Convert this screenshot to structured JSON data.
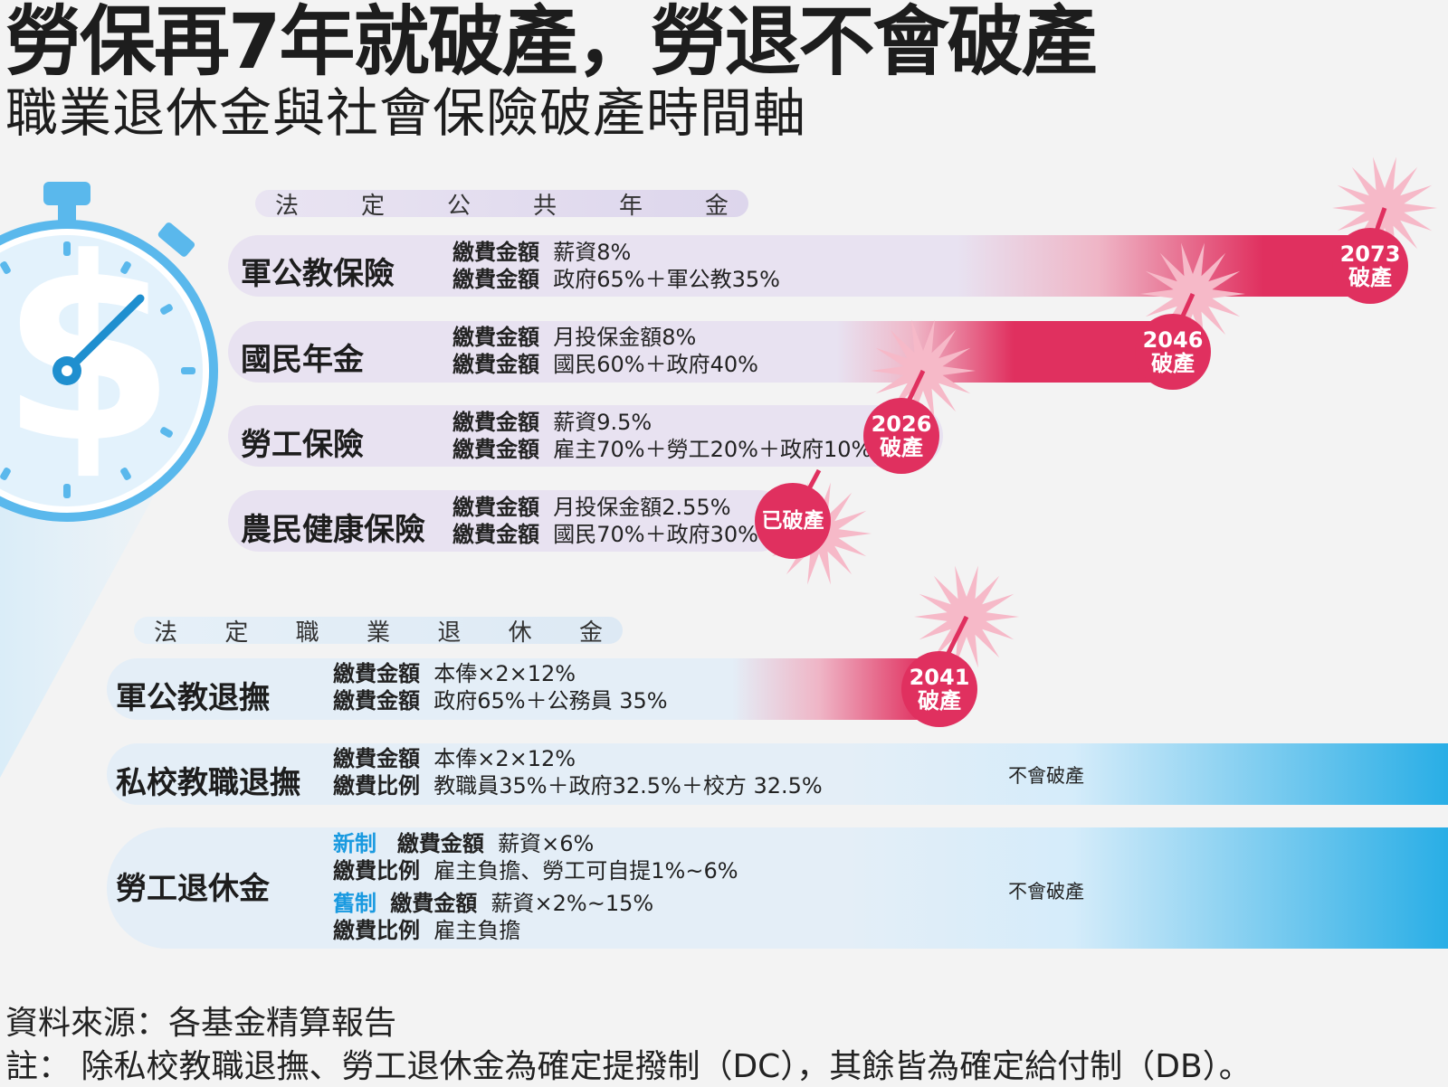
{
  "title": "勞保再7年就破產，勞退不會破產",
  "subtitle": "職業退休金與社會保險破產時間軸",
  "section1": {
    "header": [
      "法",
      "定",
      "公",
      "共",
      "年",
      "金"
    ]
  },
  "section2": {
    "header": [
      "法",
      "定",
      "職",
      "業",
      "退",
      "休",
      "金"
    ]
  },
  "public_rows": [
    {
      "name": "軍公教保險",
      "lines": [
        [
          "繳費金額",
          "薪資8%"
        ],
        [
          "繳費金額",
          "政府65%＋軍公教35%"
        ]
      ],
      "badge": [
        "2073",
        "破產"
      ]
    },
    {
      "name": "國民年金",
      "lines": [
        [
          "繳費金額",
          "月投保金額8%"
        ],
        [
          "繳費金額",
          "國民60%＋政府40%"
        ]
      ],
      "badge": [
        "2046",
        "破產"
      ]
    },
    {
      "name": "勞工保險",
      "lines": [
        [
          "繳費金額",
          "薪資9.5%"
        ],
        [
          "繳費金額",
          "雇主70%＋勞工20%＋政府10%"
        ]
      ],
      "badge": [
        "2026",
        "破產"
      ]
    },
    {
      "name": "農民健康保險",
      "lines": [
        [
          "繳費金額",
          "月投保金額2.55%"
        ],
        [
          "繳費金額",
          "國民70%＋政府30%"
        ]
      ],
      "badge": [
        "已破產"
      ]
    }
  ],
  "occupational_rows": [
    {
      "name": "軍公教退撫",
      "lines": [
        [
          "繳費金額",
          "本俸×2×12%"
        ],
        [
          "繳費金額",
          "政府65%＋公務員 35%"
        ]
      ],
      "badge": [
        "2041",
        "破產"
      ]
    },
    {
      "name": "私校教職退撫",
      "lines": [
        [
          "繳費金額",
          "本俸×2×12%"
        ],
        [
          "繳費比例",
          "教職員35%＋政府32.5%＋校方 32.5%"
        ]
      ],
      "status": "不會破產"
    },
    {
      "name": "勞工退休金",
      "new_tag": "新制",
      "old_tag": "舊制",
      "lines": [
        [
          "繳費金額",
          "薪資×6%"
        ],
        [
          "繳費比例",
          "雇主負擔、勞工可自提1%~6%"
        ],
        [
          "繳費金額",
          "薪資×2%~15%"
        ],
        [
          "繳費比例",
          "雇主負擔"
        ]
      ],
      "status": "不會破產"
    }
  ],
  "footer": {
    "source": "資料來源：各基金精算報告",
    "note": "註：  除私校教職退撫、勞工退休金為確定提撥制（DC），其餘皆為確定給付制（DB）。"
  },
  "colors": {
    "accent": "#e0305f",
    "blue": "#29aee6",
    "clock": "#5ab8ec",
    "lavender": "#e8e2f1"
  }
}
